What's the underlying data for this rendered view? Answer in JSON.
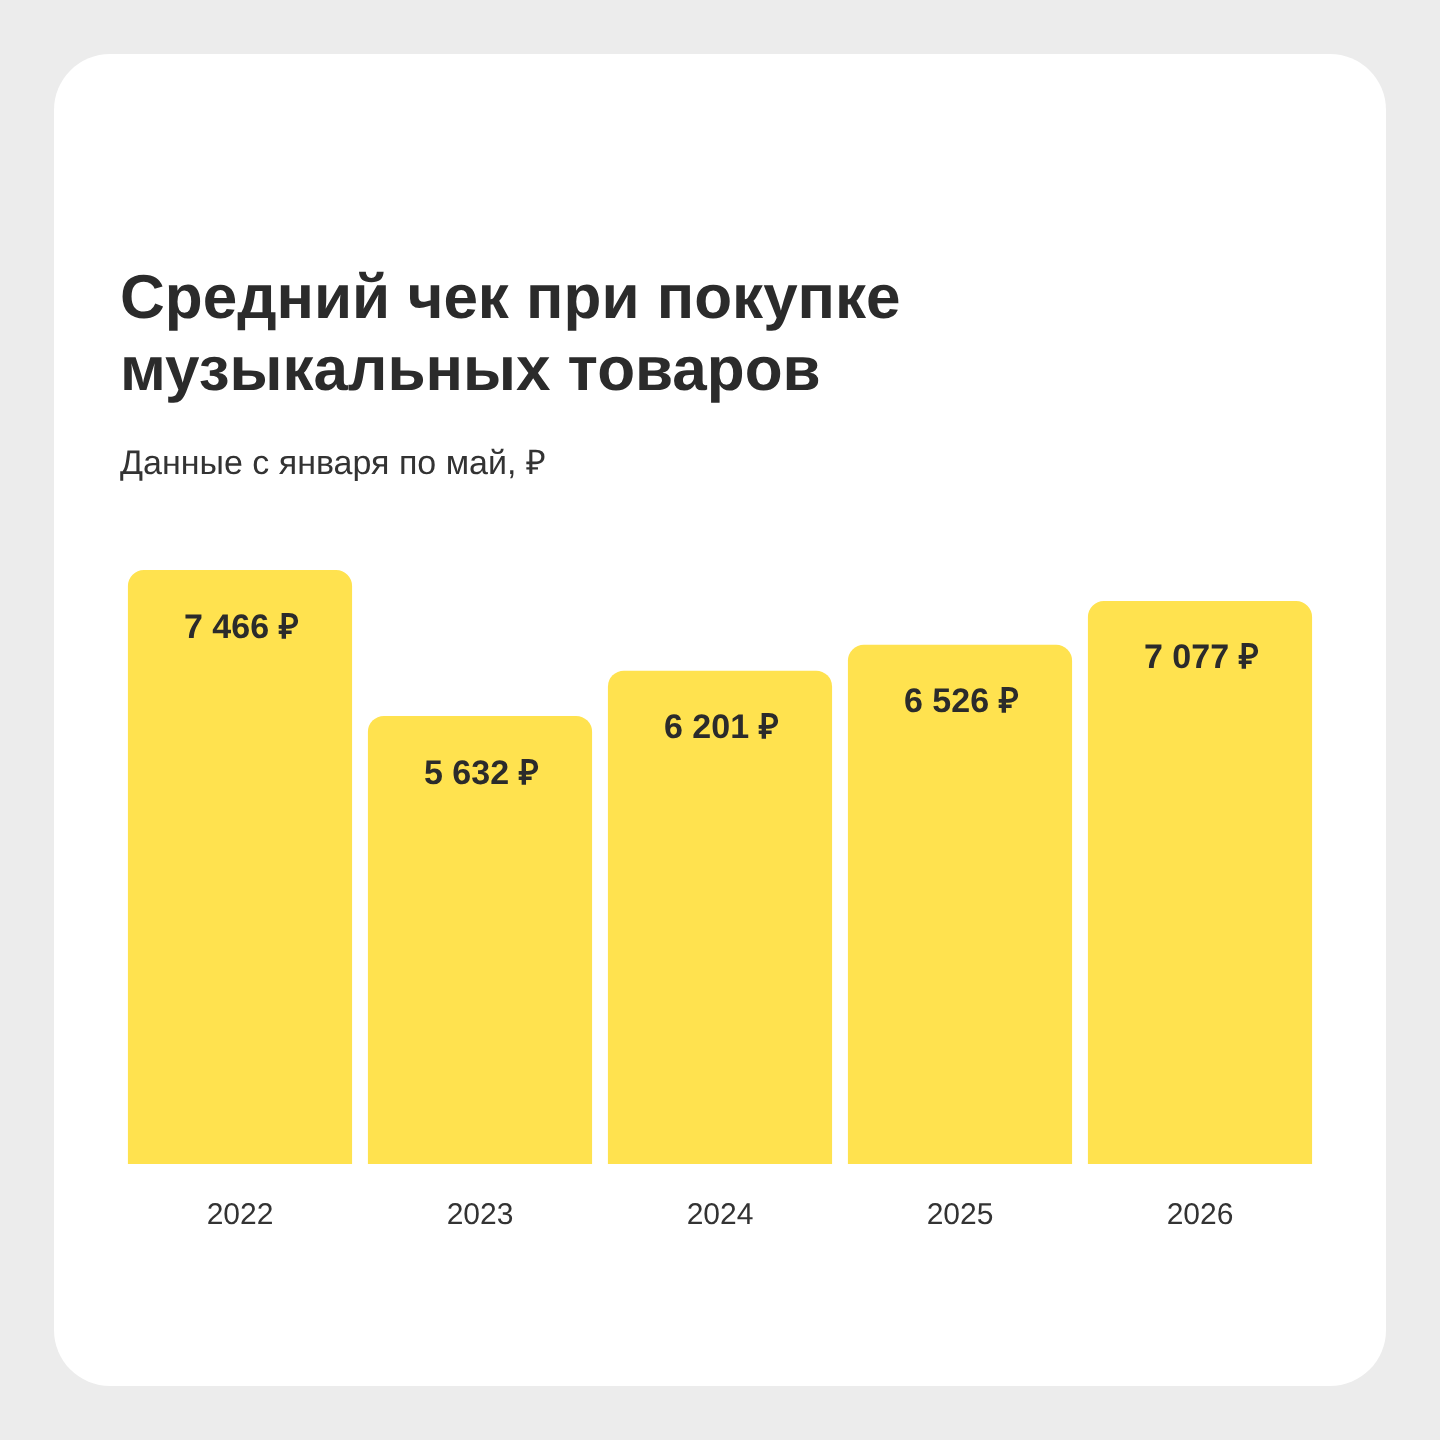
{
  "chart_data": {
    "type": "bar",
    "title": "Средний чек при покупке музыкальных товаров",
    "subtitle": "Данные с января по май, ₽",
    "categories": [
      "2022",
      "2023",
      "2024",
      "2025",
      "2026"
    ],
    "values": [
      7466,
      5632,
      6201,
      6526,
      7077
    ],
    "color": "#ffe24f",
    "value_labels": [
      "7 466 ₽",
      "5 632 ₽",
      "6 201 ₽",
      "6 526 ₽",
      "7 077 ₽"
    ]
  }
}
